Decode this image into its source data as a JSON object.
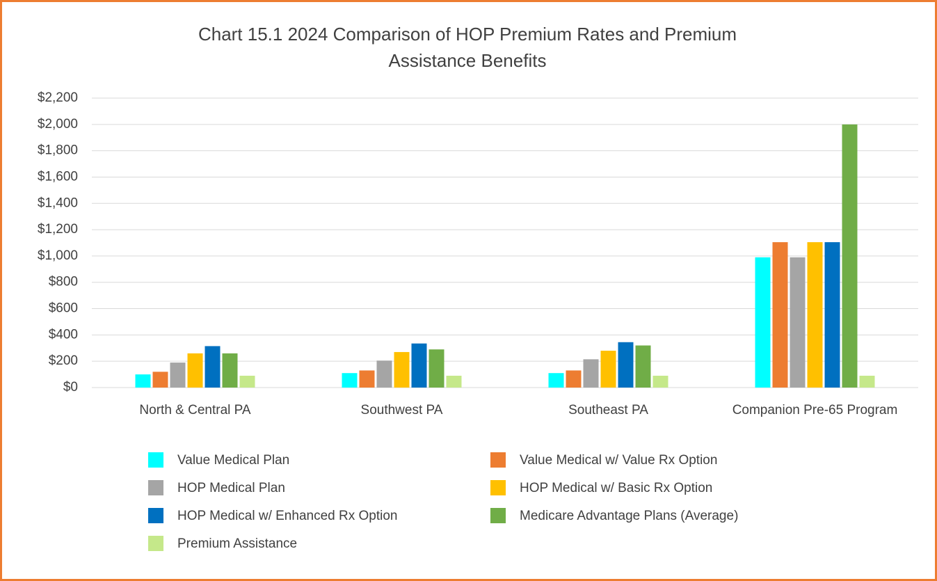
{
  "chart_data": {
    "type": "bar",
    "title": "Chart 15.1  2024 Comparison of HOP Premium Rates and Premium Assistance Benefits",
    "categories": [
      "North & Central PA",
      "Southwest PA",
      "Southeast PA",
      "Companion Pre-65 Program"
    ],
    "series": [
      {
        "name": "Value Medical Plan",
        "color": "#00ffff",
        "values": [
          100,
          110,
          110,
          990
        ]
      },
      {
        "name": "Value Medical w/ Value Rx Option",
        "color": "#ed7d31",
        "values": [
          120,
          130,
          130,
          1105
        ]
      },
      {
        "name": "HOP Medical Plan",
        "color": "#a5a5a5",
        "values": [
          190,
          205,
          215,
          990
        ]
      },
      {
        "name": "HOP Medical w/ Basic Rx Option",
        "color": "#ffc000",
        "values": [
          260,
          270,
          280,
          1105
        ]
      },
      {
        "name": "HOP Medical w/ Enhanced Rx Option",
        "color": "#0070c0",
        "values": [
          315,
          335,
          345,
          1105
        ]
      },
      {
        "name": "Medicare Advantage Plans (Average)",
        "color": "#70ad47",
        "values": [
          260,
          290,
          320,
          2000
        ]
      },
      {
        "name": "Premium Assistance",
        "color": "#c5e88a",
        "values": [
          90,
          90,
          90,
          90
        ]
      }
    ],
    "ylim": [
      0,
      2200
    ],
    "yticks": [
      {
        "value": 0,
        "label": "$0"
      },
      {
        "value": 200,
        "label": "$200"
      },
      {
        "value": 400,
        "label": "$400"
      },
      {
        "value": 600,
        "label": "$600"
      },
      {
        "value": 800,
        "label": "$800"
      },
      {
        "value": 1000,
        "label": "$1,000"
      },
      {
        "value": 1200,
        "label": "$1,200"
      },
      {
        "value": 1400,
        "label": "$1,400"
      },
      {
        "value": 1600,
        "label": "$1,600"
      },
      {
        "value": 1800,
        "label": "$1,800"
      },
      {
        "value": 2000,
        "label": "$2,000"
      },
      {
        "value": 2200,
        "label": "$2,200"
      }
    ],
    "grid": true,
    "legend": "bottom"
  }
}
